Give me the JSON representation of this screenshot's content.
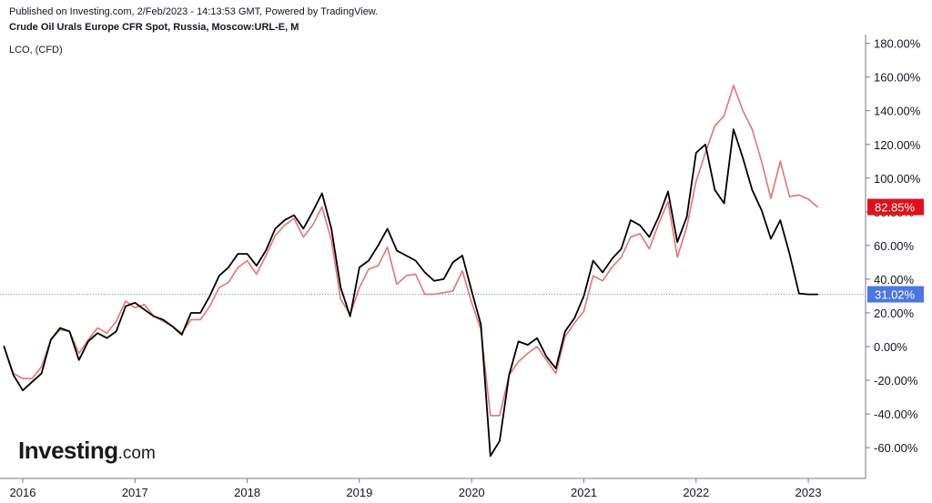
{
  "header": {
    "published": "Published on Investing.com, 2/Feb/2023 - 14:13:53 GMT, Powered by TradingView.",
    "instrument": "Crude Oil Urals Europe CFR Spot, Russia, Moscow:URL-E, M",
    "compare": "LCO,  (CFD)"
  },
  "logo": {
    "brand": "Investing",
    "domain": ".com"
  },
  "colors": {
    "urals": "#000000",
    "lco": "#e57373",
    "badge_lco": "#e0101a",
    "badge_urals": "#4a77e0",
    "axis": "#787b86",
    "hline": "#5b8fd6"
  },
  "chart_data": {
    "type": "line",
    "ylim": [
      -78,
      182
    ],
    "xlim": [
      2015.833,
      2023.5
    ],
    "y_ticks": [
      "180.00%",
      "160.00%",
      "140.00%",
      "120.00%",
      "100.00%",
      "80.00%",
      "60.00%",
      "40.00%",
      "20.00%",
      "0.00%",
      "-20.00%",
      "-40.00%",
      "-60.00%"
    ],
    "y_tick_values": [
      180,
      160,
      140,
      120,
      100,
      80,
      60,
      40,
      20,
      0,
      -20,
      -40,
      -60
    ],
    "x_ticks": [
      "2016",
      "2017",
      "2018",
      "2019",
      "2020",
      "2021",
      "2022",
      "2023"
    ],
    "x_tick_values": [
      2016,
      2017,
      2018,
      2019,
      2020,
      2021,
      2022,
      2023
    ],
    "series": [
      {
        "name": "Crude Oil Urals Europe CFR Spot",
        "color": "#000000",
        "last_label": "31.02%",
        "last_value": 31.02,
        "points": [
          [
            2015.833,
            0
          ],
          [
            2015.917,
            -17
          ],
          [
            2016.0,
            -26
          ],
          [
            2016.083,
            -21
          ],
          [
            2016.167,
            -16
          ],
          [
            2016.25,
            4
          ],
          [
            2016.333,
            11
          ],
          [
            2016.417,
            9
          ],
          [
            2016.5,
            -8
          ],
          [
            2016.583,
            3
          ],
          [
            2016.667,
            8
          ],
          [
            2016.75,
            5
          ],
          [
            2016.833,
            9
          ],
          [
            2016.917,
            24
          ],
          [
            2017.0,
            26
          ],
          [
            2017.083,
            22
          ],
          [
            2017.167,
            18
          ],
          [
            2017.25,
            16
          ],
          [
            2017.333,
            12
          ],
          [
            2017.417,
            7
          ],
          [
            2017.5,
            20
          ],
          [
            2017.583,
            20
          ],
          [
            2017.667,
            30
          ],
          [
            2017.75,
            42
          ],
          [
            2017.833,
            47
          ],
          [
            2017.917,
            55
          ],
          [
            2018.0,
            55
          ],
          [
            2018.083,
            48
          ],
          [
            2018.167,
            57
          ],
          [
            2018.25,
            70
          ],
          [
            2018.333,
            75
          ],
          [
            2018.417,
            78
          ],
          [
            2018.5,
            70
          ],
          [
            2018.583,
            80
          ],
          [
            2018.667,
            91
          ],
          [
            2018.75,
            70
          ],
          [
            2018.833,
            35
          ],
          [
            2018.917,
            18
          ],
          [
            2019.0,
            47
          ],
          [
            2019.083,
            51
          ],
          [
            2019.167,
            60
          ],
          [
            2019.25,
            70
          ],
          [
            2019.333,
            57
          ],
          [
            2019.417,
            54
          ],
          [
            2019.5,
            51
          ],
          [
            2019.583,
            44
          ],
          [
            2019.667,
            39
          ],
          [
            2019.75,
            40
          ],
          [
            2019.833,
            50
          ],
          [
            2019.917,
            54
          ],
          [
            2020.0,
            33
          ],
          [
            2020.083,
            13
          ],
          [
            2020.167,
            -65
          ],
          [
            2020.25,
            -56
          ],
          [
            2020.333,
            -17
          ],
          [
            2020.417,
            3
          ],
          [
            2020.5,
            1
          ],
          [
            2020.583,
            5
          ],
          [
            2020.667,
            -6
          ],
          [
            2020.75,
            -13
          ],
          [
            2020.833,
            9
          ],
          [
            2020.917,
            17
          ],
          [
            2021.0,
            30
          ],
          [
            2021.083,
            51
          ],
          [
            2021.167,
            44
          ],
          [
            2021.25,
            52
          ],
          [
            2021.333,
            58
          ],
          [
            2021.417,
            75
          ],
          [
            2021.5,
            72
          ],
          [
            2021.583,
            65
          ],
          [
            2021.667,
            77
          ],
          [
            2021.75,
            92
          ],
          [
            2021.833,
            62
          ],
          [
            2021.917,
            77
          ],
          [
            2022.0,
            115
          ],
          [
            2022.083,
            120
          ],
          [
            2022.167,
            93
          ],
          [
            2022.25,
            85
          ],
          [
            2022.333,
            129
          ],
          [
            2022.417,
            112
          ],
          [
            2022.5,
            93
          ],
          [
            2022.583,
            81
          ],
          [
            2022.667,
            64
          ],
          [
            2022.75,
            75
          ],
          [
            2022.833,
            55
          ],
          [
            2022.917,
            31.5
          ],
          [
            2023.0,
            31
          ],
          [
            2023.083,
            31.02
          ]
        ]
      },
      {
        "name": "LCO",
        "color": "#e57373",
        "last_label": "82.85%",
        "last_value": 82.85,
        "points": [
          [
            2015.833,
            0
          ],
          [
            2015.917,
            -16
          ],
          [
            2016.0,
            -19
          ],
          [
            2016.083,
            -19
          ],
          [
            2016.167,
            -12
          ],
          [
            2016.25,
            4
          ],
          [
            2016.333,
            10
          ],
          [
            2016.417,
            9
          ],
          [
            2016.5,
            -4
          ],
          [
            2016.583,
            4
          ],
          [
            2016.667,
            11
          ],
          [
            2016.75,
            8
          ],
          [
            2016.833,
            15
          ],
          [
            2016.917,
            27
          ],
          [
            2017.0,
            23
          ],
          [
            2017.083,
            25
          ],
          [
            2017.167,
            18
          ],
          [
            2017.25,
            15
          ],
          [
            2017.333,
            12
          ],
          [
            2017.417,
            8
          ],
          [
            2017.5,
            16
          ],
          [
            2017.583,
            16
          ],
          [
            2017.667,
            24
          ],
          [
            2017.75,
            35
          ],
          [
            2017.833,
            38
          ],
          [
            2017.917,
            47
          ],
          [
            2018.0,
            51
          ],
          [
            2018.083,
            43
          ],
          [
            2018.167,
            54
          ],
          [
            2018.25,
            66
          ],
          [
            2018.333,
            72
          ],
          [
            2018.417,
            76
          ],
          [
            2018.5,
            65
          ],
          [
            2018.583,
            72
          ],
          [
            2018.667,
            83
          ],
          [
            2018.75,
            63
          ],
          [
            2018.833,
            28
          ],
          [
            2018.917,
            19
          ],
          [
            2019.0,
            35
          ],
          [
            2019.083,
            46
          ],
          [
            2019.167,
            48
          ],
          [
            2019.25,
            59
          ],
          [
            2019.333,
            37
          ],
          [
            2019.417,
            42
          ],
          [
            2019.5,
            43
          ],
          [
            2019.583,
            31
          ],
          [
            2019.667,
            31
          ],
          [
            2019.75,
            32
          ],
          [
            2019.833,
            33
          ],
          [
            2019.917,
            45
          ],
          [
            2020.0,
            26
          ],
          [
            2020.083,
            10
          ],
          [
            2020.167,
            -41
          ],
          [
            2020.25,
            -41
          ],
          [
            2020.333,
            -17
          ],
          [
            2020.417,
            -9
          ],
          [
            2020.5,
            -4
          ],
          [
            2020.583,
            0
          ],
          [
            2020.667,
            -8
          ],
          [
            2020.75,
            -16
          ],
          [
            2020.833,
            6
          ],
          [
            2020.917,
            14
          ],
          [
            2021.0,
            21
          ],
          [
            2021.083,
            42
          ],
          [
            2021.167,
            39
          ],
          [
            2021.25,
            47
          ],
          [
            2021.333,
            53
          ],
          [
            2021.417,
            65
          ],
          [
            2021.5,
            67
          ],
          [
            2021.583,
            58
          ],
          [
            2021.667,
            73
          ],
          [
            2021.75,
            86
          ],
          [
            2021.833,
            53
          ],
          [
            2021.917,
            71
          ],
          [
            2022.0,
            98
          ],
          [
            2022.083,
            115
          ],
          [
            2022.167,
            131
          ],
          [
            2022.25,
            137
          ],
          [
            2022.333,
            155
          ],
          [
            2022.417,
            140
          ],
          [
            2022.5,
            129
          ],
          [
            2022.583,
            110
          ],
          [
            2022.667,
            88
          ],
          [
            2022.75,
            110
          ],
          [
            2022.833,
            89
          ],
          [
            2022.917,
            90
          ],
          [
            2023.0,
            87.5
          ],
          [
            2023.083,
            82.85
          ]
        ]
      }
    ]
  }
}
